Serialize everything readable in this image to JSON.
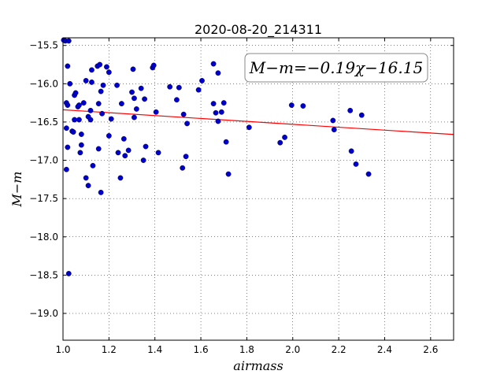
{
  "chart_data": {
    "type": "scatter",
    "title": "2020-08-20_214311",
    "xlabel": "airmass",
    "ylabel": "M−m",
    "xlim": [
      1.0,
      2.7
    ],
    "ylim": [
      -19.35,
      -15.4
    ],
    "xticks": [
      1.0,
      1.2,
      1.4,
      1.6,
      1.8,
      2.0,
      2.2,
      2.4,
      2.6
    ],
    "xtick_labels": [
      "1.0",
      "1.2",
      "1.4",
      "1.6",
      "1.8",
      "2.0",
      "2.2",
      "2.4",
      "2.6"
    ],
    "yticks": [
      -15.5,
      -16.0,
      -16.5,
      -17.0,
      -17.5,
      -18.0,
      -18.5,
      -19.0
    ],
    "ytick_labels": [
      "−15.5",
      "−16.0",
      "−16.5",
      "−17.0",
      "−17.5",
      "−18.0",
      "−18.5",
      "−19.0"
    ],
    "grid": true,
    "annotation": "M−m=−0.19χ−16.15",
    "annotation_position": "top-right",
    "fit": {
      "slope": -0.19,
      "intercept": -16.15,
      "color": "#ff0000"
    },
    "point_color": "#0000cc",
    "points": [
      [
        1.003,
        -15.43
      ],
      [
        1.01,
        -15.44
      ],
      [
        1.025,
        -15.44
      ],
      [
        1.02,
        -15.77
      ],
      [
        1.03,
        -16.0
      ],
      [
        1.015,
        -16.25
      ],
      [
        1.02,
        -16.28
      ],
      [
        1.015,
        -16.58
      ],
      [
        1.02,
        -16.83
      ],
      [
        1.015,
        -17.12
      ],
      [
        1.025,
        -18.48
      ],
      [
        1.04,
        -16.62
      ],
      [
        1.045,
        -16.63
      ],
      [
        1.05,
        -16.15
      ],
      [
        1.055,
        -16.12
      ],
      [
        1.05,
        -16.47
      ],
      [
        1.065,
        -16.3
      ],
      [
        1.07,
        -16.28
      ],
      [
        1.07,
        -16.47
      ],
      [
        1.08,
        -16.66
      ],
      [
        1.08,
        -16.8
      ],
      [
        1.075,
        -16.9
      ],
      [
        1.09,
        -16.25
      ],
      [
        1.1,
        -15.96
      ],
      [
        1.1,
        -17.23
      ],
      [
        1.11,
        -17.33
      ],
      [
        1.11,
        -16.43
      ],
      [
        1.12,
        -16.47
      ],
      [
        1.12,
        -16.35
      ],
      [
        1.125,
        -15.98
      ],
      [
        1.125,
        -15.82
      ],
      [
        1.13,
        -17.07
      ],
      [
        1.15,
        -15.77
      ],
      [
        1.16,
        -15.75
      ],
      [
        1.155,
        -16.26
      ],
      [
        1.155,
        -16.85
      ],
      [
        1.165,
        -16.1
      ],
      [
        1.17,
        -16.39
      ],
      [
        1.175,
        -16.02
      ],
      [
        1.165,
        -17.42
      ],
      [
        1.19,
        -15.78
      ],
      [
        1.2,
        -15.85
      ],
      [
        1.2,
        -16.68
      ],
      [
        1.21,
        -16.46
      ],
      [
        1.235,
        -16.02
      ],
      [
        1.24,
        -16.9
      ],
      [
        1.25,
        -17.23
      ],
      [
        1.255,
        -16.26
      ],
      [
        1.265,
        -16.72
      ],
      [
        1.27,
        -16.94
      ],
      [
        1.285,
        -16.87
      ],
      [
        1.3,
        -16.11
      ],
      [
        1.305,
        -15.81
      ],
      [
        1.31,
        -16.19
      ],
      [
        1.31,
        -16.44
      ],
      [
        1.32,
        -16.33
      ],
      [
        1.34,
        -16.06
      ],
      [
        1.35,
        -17.0
      ],
      [
        1.355,
        -16.2
      ],
      [
        1.36,
        -16.82
      ],
      [
        1.39,
        -15.79
      ],
      [
        1.395,
        -15.76
      ],
      [
        1.405,
        -16.37
      ],
      [
        1.415,
        -16.9
      ],
      [
        1.465,
        -16.04
      ],
      [
        1.495,
        -16.21
      ],
      [
        1.505,
        -16.05
      ],
      [
        1.52,
        -17.1
      ],
      [
        1.525,
        -16.4
      ],
      [
        1.535,
        -16.95
      ],
      [
        1.54,
        -16.52
      ],
      [
        1.59,
        -16.08
      ],
      [
        1.605,
        -15.96
      ],
      [
        1.655,
        -15.74
      ],
      [
        1.655,
        -16.26
      ],
      [
        1.665,
        -16.38
      ],
      [
        1.675,
        -16.49
      ],
      [
        1.675,
        -15.86
      ],
      [
        1.69,
        -16.37
      ],
      [
        1.7,
        -16.25
      ],
      [
        1.71,
        -16.76
      ],
      [
        1.72,
        -17.18
      ],
      [
        1.81,
        -16.57
      ],
      [
        1.945,
        -16.77
      ],
      [
        1.965,
        -16.7
      ],
      [
        1.995,
        -16.28
      ],
      [
        2.045,
        -16.29
      ],
      [
        2.175,
        -16.48
      ],
      [
        2.18,
        -16.6
      ],
      [
        2.25,
        -16.35
      ],
      [
        2.255,
        -16.88
      ],
      [
        2.275,
        -17.05
      ],
      [
        2.3,
        -16.41
      ],
      [
        2.33,
        -17.18
      ]
    ]
  }
}
